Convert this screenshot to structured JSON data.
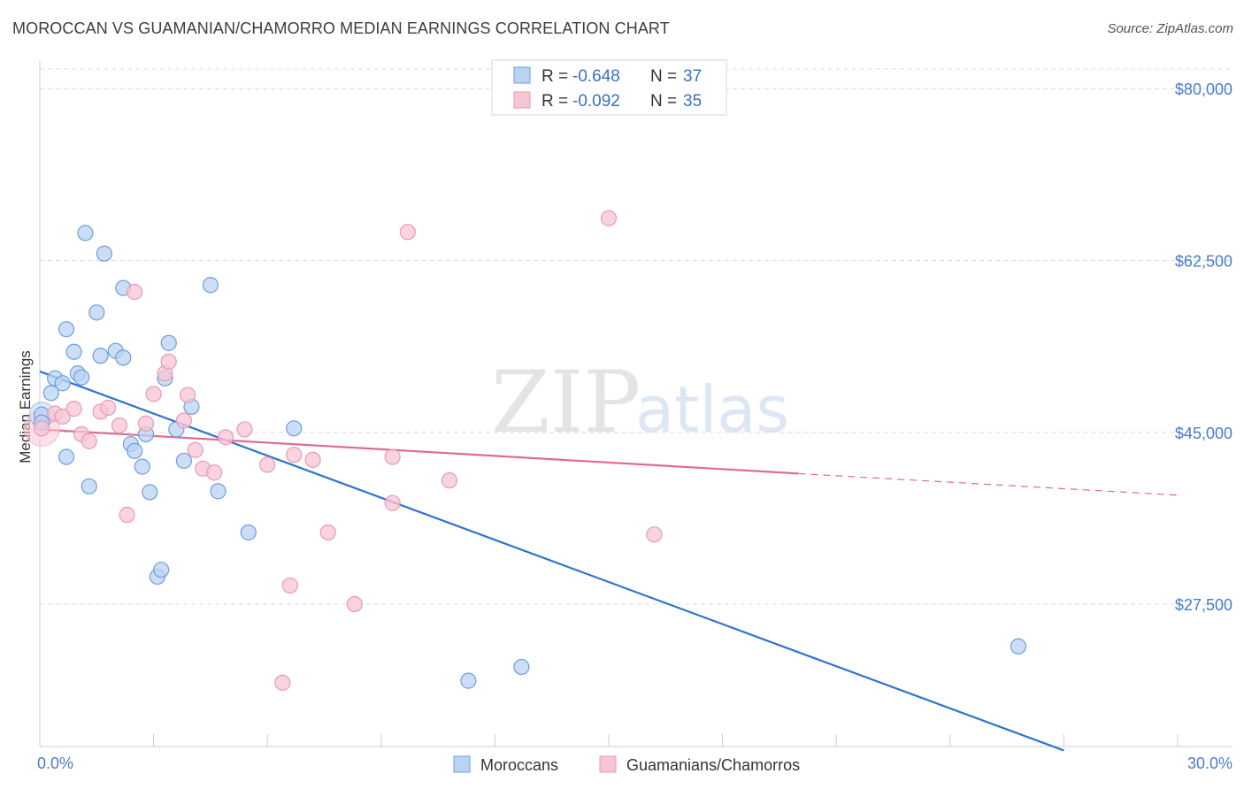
{
  "title": "MOROCCAN VS GUAMANIAN/CHAMORRO MEDIAN EARNINGS CORRELATION CHART",
  "source": "Source: ZipAtlas.com",
  "watermark": {
    "zip": "ZIP",
    "atlas": "atlas"
  },
  "colors": {
    "blue_fill": "#b9d3f3",
    "blue_stroke": "#6f9edc",
    "blue_line": "#2f73d0",
    "pink_fill": "#f7c6d6",
    "pink_stroke": "#e79ab4",
    "pink_line": "#e06a93",
    "grid": "#dcdcdc",
    "tick_text": "#4a7cc9"
  },
  "legend": {
    "rows": [
      {
        "r_label": "R = ",
        "r_value": "-0.648",
        "n_label": "N = ",
        "n_value": "37"
      },
      {
        "r_label": "R = ",
        "r_value": "-0.092",
        "n_label": "N = ",
        "n_value": "35"
      }
    ]
  },
  "chart_data": {
    "type": "scatter",
    "title": "MOROCCAN VS GUAMANIAN/CHAMORRO MEDIAN EARNINGS CORRELATION CHART",
    "xlabel": "",
    "ylabel": "Median Earnings",
    "xlim": [
      0,
      30
    ],
    "ylim": [
      13000,
      82000
    ],
    "x_tick_labels": [
      "0.0%",
      "30.0%"
    ],
    "y_ticks": [
      27500,
      45000,
      62500,
      80000
    ],
    "y_tick_labels": [
      "$27,500",
      "$45,000",
      "$62,500",
      "$80,000"
    ],
    "grid": true,
    "legend_position": "top-center",
    "series": [
      {
        "name": "Moroccans",
        "color": "#6f9edc",
        "points": [
          [
            0.05,
            46800
          ],
          [
            0.05,
            46000
          ],
          [
            0.3,
            49000
          ],
          [
            0.4,
            50500
          ],
          [
            0.6,
            50000
          ],
          [
            0.7,
            42500
          ],
          [
            0.7,
            55500
          ],
          [
            0.9,
            53200
          ],
          [
            1.0,
            51000
          ],
          [
            1.1,
            50600
          ],
          [
            1.2,
            65300
          ],
          [
            1.3,
            39500
          ],
          [
            1.5,
            57200
          ],
          [
            1.6,
            52800
          ],
          [
            1.7,
            63200
          ],
          [
            2.0,
            53300
          ],
          [
            2.2,
            59700
          ],
          [
            2.2,
            52600
          ],
          [
            2.4,
            43800
          ],
          [
            2.5,
            43100
          ],
          [
            2.7,
            41500
          ],
          [
            2.8,
            44800
          ],
          [
            2.9,
            38900
          ],
          [
            3.1,
            30300
          ],
          [
            3.2,
            31000
          ],
          [
            3.3,
            50500
          ],
          [
            3.4,
            54100
          ],
          [
            3.6,
            45300
          ],
          [
            3.8,
            42100
          ],
          [
            4.0,
            47600
          ],
          [
            4.5,
            60000
          ],
          [
            4.7,
            39000
          ],
          [
            5.5,
            34800
          ],
          [
            6.7,
            45400
          ],
          [
            11.3,
            19700
          ],
          [
            12.7,
            21100
          ],
          [
            25.8,
            23200
          ]
        ],
        "trend": [
          [
            0,
            51200
          ],
          [
            27.0,
            12600
          ]
        ]
      },
      {
        "name": "Guamanians/Chamorros",
        "color": "#e79ab4",
        "points": [
          [
            0.05,
            45400
          ],
          [
            0.4,
            46900
          ],
          [
            0.6,
            46600
          ],
          [
            0.9,
            47400
          ],
          [
            1.1,
            44800
          ],
          [
            1.3,
            44100
          ],
          [
            1.6,
            47100
          ],
          [
            1.8,
            47500
          ],
          [
            2.1,
            45700
          ],
          [
            2.3,
            36600
          ],
          [
            2.5,
            59300
          ],
          [
            2.8,
            45900
          ],
          [
            3.0,
            48900
          ],
          [
            3.3,
            51000
          ],
          [
            3.4,
            52200
          ],
          [
            3.8,
            46200
          ],
          [
            3.9,
            48800
          ],
          [
            4.1,
            43200
          ],
          [
            4.3,
            41300
          ],
          [
            4.6,
            40900
          ],
          [
            4.9,
            44500
          ],
          [
            5.4,
            45300
          ],
          [
            6.0,
            41700
          ],
          [
            6.6,
            29400
          ],
          [
            6.7,
            42700
          ],
          [
            7.2,
            42200
          ],
          [
            7.6,
            34800
          ],
          [
            8.3,
            27500
          ],
          [
            9.3,
            42500
          ],
          [
            9.3,
            37800
          ],
          [
            9.7,
            65400
          ],
          [
            10.8,
            40100
          ],
          [
            15.0,
            66800
          ],
          [
            16.2,
            34600
          ],
          [
            6.4,
            19500
          ]
        ],
        "trend": [
          [
            0,
            45300
          ],
          [
            20.0,
            40800
          ]
        ],
        "trend_dashed_to": [
          30.0,
          38600
        ]
      }
    ]
  }
}
